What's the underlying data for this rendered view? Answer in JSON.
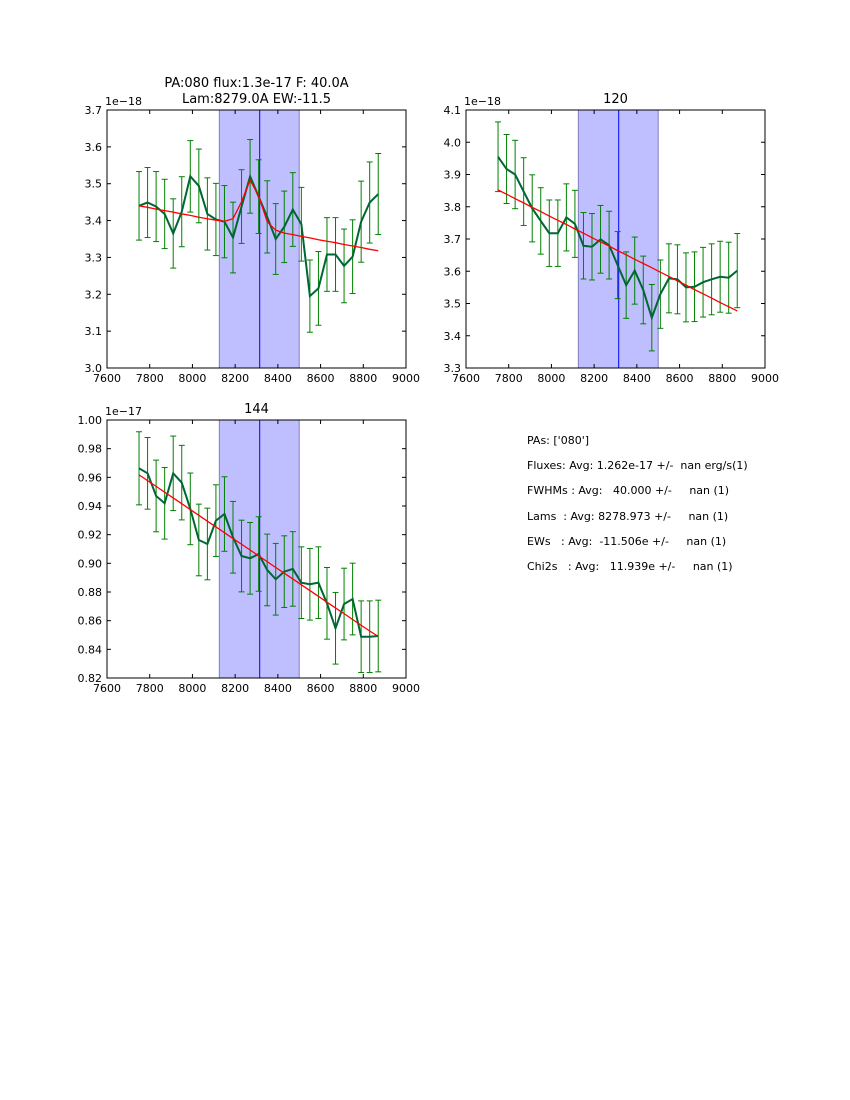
{
  "colors": {
    "data": "#006633",
    "errorbar": "#008000",
    "model": "#ff0000",
    "span": "#bfbfff",
    "vline": "#0000ff"
  },
  "chart_data": [
    {
      "type": "line",
      "title": [
        "PA:080 flux:1.3e-17 F: 40.0A",
        "Lam:8279.0A EW:-11.5"
      ],
      "offset_text": "1e−18",
      "xlim": [
        7600,
        9000
      ],
      "ylim": [
        3.0,
        3.7
      ],
      "xticks": [
        7600,
        7800,
        8000,
        8200,
        8400,
        8600,
        8800,
        9000
      ],
      "yticks": [
        3.0,
        3.1,
        3.2,
        3.3,
        3.4,
        3.5,
        3.6,
        3.7
      ],
      "ytick_decimals": 1,
      "span": [
        8126,
        8500
      ],
      "vline": 8315,
      "x_start": 7750,
      "x_step": 40,
      "y": [
        3.44,
        3.449,
        3.438,
        3.418,
        3.365,
        3.424,
        3.52,
        3.494,
        3.418,
        3.403,
        3.397,
        3.354,
        3.438,
        3.52,
        3.465,
        3.41,
        3.35,
        3.383,
        3.43,
        3.39,
        3.195,
        3.216,
        3.308,
        3.308,
        3.277,
        3.302,
        3.397,
        3.449,
        3.472
      ],
      "err": [
        0.093,
        0.095,
        0.095,
        0.094,
        0.094,
        0.095,
        0.097,
        0.1,
        0.098,
        0.098,
        0.098,
        0.096,
        0.1,
        0.1,
        0.1,
        0.098,
        0.096,
        0.097,
        0.1,
        0.1,
        0.098,
        0.1,
        0.1,
        0.1,
        0.1,
        0.1,
        0.11,
        0.11,
        0.11
      ],
      "model": [
        3.44,
        3.436,
        3.431,
        3.427,
        3.423,
        3.418,
        3.414,
        3.409,
        3.405,
        3.401,
        3.398,
        3.405,
        3.451,
        3.51,
        3.467,
        3.397,
        3.374,
        3.366,
        3.362,
        3.357,
        3.353,
        3.348,
        3.344,
        3.34,
        3.335,
        3.331,
        3.327,
        3.322,
        3.318
      ]
    },
    {
      "type": "line",
      "title": [
        "120"
      ],
      "offset_text": "1e−18",
      "xlim": [
        7600,
        9000
      ],
      "ylim": [
        3.3,
        4.1
      ],
      "xticks": [
        7600,
        7800,
        8000,
        8200,
        8400,
        8600,
        8800,
        9000
      ],
      "yticks": [
        3.3,
        3.4,
        3.5,
        3.6,
        3.7,
        3.8,
        3.9,
        4.0,
        4.1
      ],
      "ytick_decimals": 1,
      "span": [
        8126,
        8500
      ],
      "vline": 8315,
      "x_start": 7750,
      "x_step": 40,
      "y": [
        3.955,
        3.917,
        3.9,
        3.847,
        3.795,
        3.756,
        3.718,
        3.718,
        3.767,
        3.747,
        3.679,
        3.676,
        3.699,
        3.681,
        3.619,
        3.557,
        3.602,
        3.542,
        3.456,
        3.529,
        3.578,
        3.575,
        3.55,
        3.552,
        3.566,
        3.575,
        3.583,
        3.58,
        3.602
      ],
      "err": [
        0.108,
        0.107,
        0.106,
        0.105,
        0.104,
        0.103,
        0.103,
        0.103,
        0.104,
        0.104,
        0.103,
        0.103,
        0.105,
        0.105,
        0.104,
        0.103,
        0.104,
        0.105,
        0.103,
        0.106,
        0.107,
        0.107,
        0.107,
        0.108,
        0.108,
        0.11,
        0.11,
        0.11,
        0.115
      ],
      "model": [
        3.852,
        3.839,
        3.825,
        3.812,
        3.798,
        3.785,
        3.771,
        3.758,
        3.745,
        3.731,
        3.718,
        3.704,
        3.691,
        3.678,
        3.664,
        3.651,
        3.637,
        3.624,
        3.611,
        3.597,
        3.584,
        3.57,
        3.557,
        3.543,
        3.53,
        3.517,
        3.503,
        3.49,
        3.477
      ]
    },
    {
      "type": "line",
      "title": [
        "144"
      ],
      "offset_text": "1e−17",
      "xlim": [
        7600,
        9000
      ],
      "ylim": [
        0.82,
        1.0
      ],
      "xticks": [
        7600,
        7800,
        8000,
        8200,
        8400,
        8600,
        8800,
        9000
      ],
      "yticks": [
        0.82,
        0.84,
        0.86,
        0.88,
        0.9,
        0.92,
        0.94,
        0.96,
        0.98,
        1.0
      ],
      "ytick_decimals": 2,
      "span": [
        8126,
        8500
      ],
      "vline": 8315,
      "x_start": 7750,
      "x_step": 40,
      "y": [
        0.9663,
        0.9628,
        0.947,
        0.9419,
        0.9628,
        0.9563,
        0.938,
        0.9163,
        0.9135,
        0.9298,
        0.9344,
        0.9182,
        0.9051,
        0.9035,
        0.9065,
        0.8954,
        0.8889,
        0.8942,
        0.8961,
        0.8865,
        0.8854,
        0.8865,
        0.8721,
        0.8547,
        0.8716,
        0.8751,
        0.8488,
        0.8488,
        0.8493
      ],
      "err": [
        0.0255,
        0.025,
        0.025,
        0.025,
        0.026,
        0.026,
        0.025,
        0.025,
        0.025,
        0.025,
        0.026,
        0.025,
        0.025,
        0.025,
        0.026,
        0.025,
        0.025,
        0.025,
        0.026,
        0.025,
        0.025,
        0.025,
        0.025,
        0.025,
        0.025,
        0.025,
        0.025,
        0.025,
        0.025
      ],
      "model": [
        0.9617,
        0.9577,
        0.9537,
        0.9496,
        0.9456,
        0.9416,
        0.9375,
        0.9335,
        0.9294,
        0.9254,
        0.9214,
        0.9173,
        0.9133,
        0.9093,
        0.9052,
        0.9012,
        0.8971,
        0.8931,
        0.8891,
        0.885,
        0.881,
        0.877,
        0.8729,
        0.8689,
        0.8649,
        0.8608,
        0.8568,
        0.8528,
        0.849
      ]
    }
  ],
  "stats": [
    "PAs: ['080']",
    "Fluxes: Avg: 1.262e-17 +/-  nan erg/s(1)",
    "FWHMs : Avg:   40.000 +/-     nan (1)",
    "Lams  : Avg: 8278.973 +/-     nan (1)",
    "EWs   : Avg:  -11.506e +/-     nan (1)",
    "Chi2s   : Avg:   11.939e +/-     nan (1)"
  ]
}
